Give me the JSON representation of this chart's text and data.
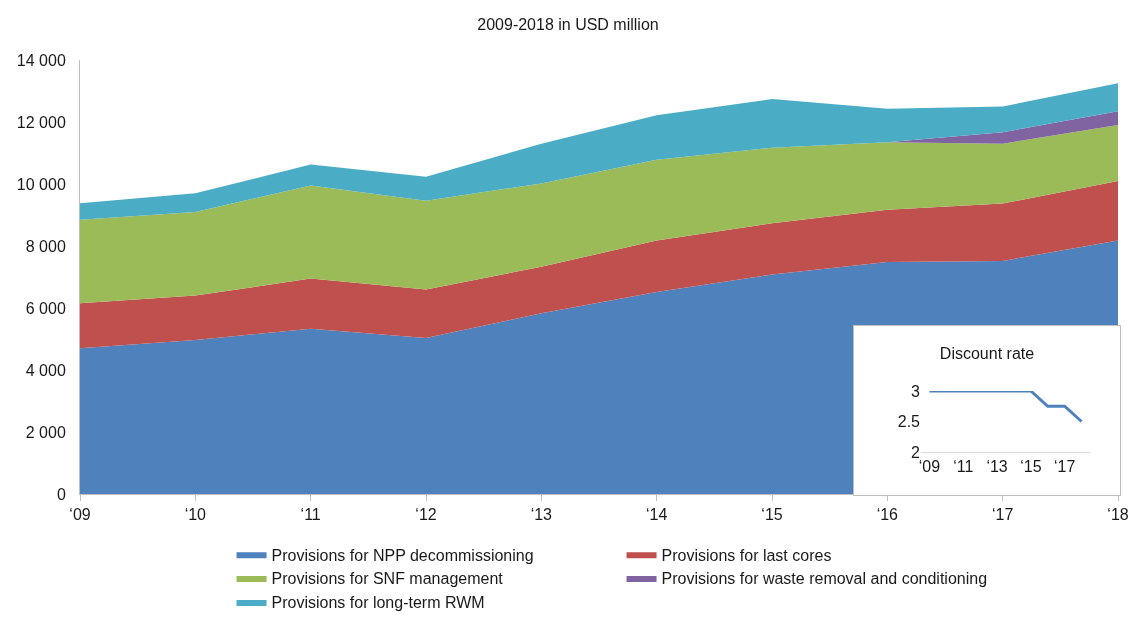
{
  "chart_data": [
    {
      "type": "area",
      "stacked": true,
      "title": "2009-2018 in USD million",
      "categories": [
        "‘09",
        "‘10",
        "‘11",
        "‘12",
        "‘13",
        "‘14",
        "‘15",
        "‘16",
        "‘17",
        "‘18"
      ],
      "ylim": [
        0,
        14000
      ],
      "yticks": [
        0,
        {
          "value": 2000,
          "label": "2 000"
        },
        {
          "value": 4000,
          "label": "4 000"
        },
        {
          "value": 6000,
          "label": "6 000"
        },
        {
          "value": 8000,
          "label": "8 000"
        },
        {
          "value": 10000,
          "label": "10 000"
        },
        {
          "value": 12000,
          "label": "12 000"
        },
        {
          "value": 14000,
          "label": "14 000"
        }
      ],
      "grid": false,
      "legend": "bottom",
      "series": [
        {
          "name": "Provisions for NPP decommissioning",
          "color": "#4f81bd",
          "values": [
            4700,
            4970,
            5330,
            5030,
            5830,
            6520,
            7080,
            7480,
            7520,
            8180
          ]
        },
        {
          "name": "Provisions for last cores",
          "color": "#c0504d",
          "values": [
            1450,
            1430,
            1620,
            1570,
            1500,
            1660,
            1650,
            1690,
            1850,
            1920
          ]
        },
        {
          "name": "Provisions for SNF management",
          "color": "#9bbb59",
          "values": [
            2700,
            2700,
            3000,
            2860,
            2690,
            2600,
            2440,
            2180,
            1930,
            1800
          ]
        },
        {
          "name": "Provisions for waste removal and conditioning",
          "color": "#8064a2",
          "values": [
            0,
            0,
            0,
            0,
            0,
            0,
            0,
            0,
            370,
            450
          ]
        },
        {
          "name": "Provisions for long-term RWM",
          "color": "#4bacc6",
          "values": [
            530,
            600,
            680,
            770,
            1280,
            1440,
            1570,
            1080,
            830,
            900
          ]
        }
      ]
    },
    {
      "type": "line",
      "title": "Discount rate",
      "categories": [
        "‘09",
        null,
        "‘11",
        null,
        "‘13",
        null,
        "‘15",
        null,
        "‘17",
        null
      ],
      "values": [
        3,
        3,
        3,
        3,
        3,
        3,
        3,
        2.75,
        2.75,
        2.5
      ],
      "color": "#4f81bd",
      "ylim": [
        2,
        3
      ],
      "yticks": [
        2,
        2.5,
        3
      ],
      "grid": false,
      "legend": false
    }
  ]
}
